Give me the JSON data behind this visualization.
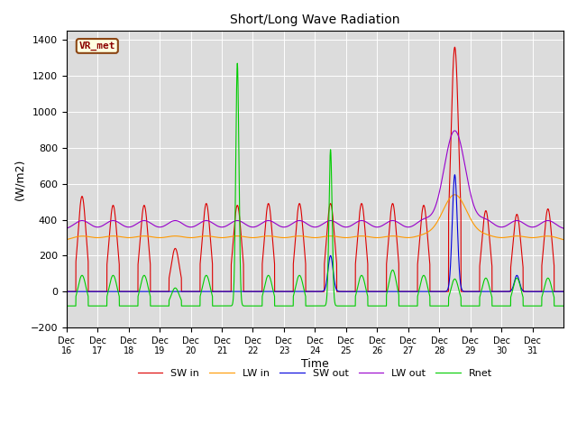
{
  "title": "Short/Long Wave Radiation",
  "xlabel": "Time",
  "ylabel": "(W/m2)",
  "ylim": [
    -200,
    1450
  ],
  "yticks": [
    -200,
    0,
    200,
    400,
    600,
    800,
    1000,
    1200,
    1400
  ],
  "bg_color": "#dcdcdc",
  "series_colors": {
    "SW in": "#dd0000",
    "LW in": "#ff9900",
    "SW out": "#0000dd",
    "LW out": "#9900cc",
    "Rnet": "#00cc00"
  },
  "x_tick_labels": [
    "Dec 16",
    "Dec 17",
    "Dec 18",
    "Dec 19",
    "Dec 20",
    "Dec 21",
    "Dec 22",
    "Dec 23",
    "Dec 24",
    "Dec 25",
    "Dec 26",
    "Dec 27",
    "Dec 28",
    "Dec 29",
    "Dec 30",
    "Dec 31"
  ],
  "legend_label": "VR_met"
}
